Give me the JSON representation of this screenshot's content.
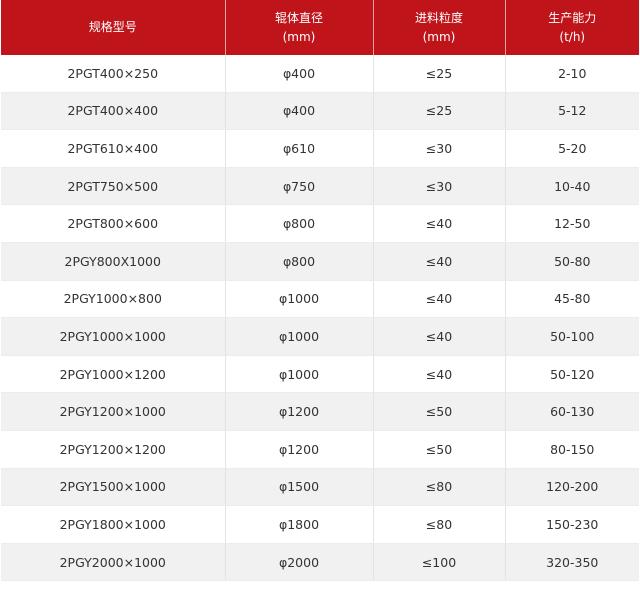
{
  "table": {
    "header": [
      {
        "title": "规格型号"
      },
      {
        "title": "辊体直径",
        "unit": "(mm)"
      },
      {
        "title": "进料粒度",
        "unit": "(mm)"
      },
      {
        "title": "生产能力",
        "unit": "(t/h)"
      }
    ],
    "rows": [
      [
        "2PGT400×250",
        "φ400",
        "≤25",
        "2-10"
      ],
      [
        "2PGT400×400",
        "φ400",
        "≤25",
        "5-12"
      ],
      [
        "2PGT610×400",
        "φ610",
        "≤30",
        "5-20"
      ],
      [
        "2PGT750×500",
        "φ750",
        "≤30",
        "10-40"
      ],
      [
        "2PGT800×600",
        "φ800",
        "≤40",
        "12-50"
      ],
      [
        "2PGY800X1000",
        "φ800",
        "≤40",
        "50-80"
      ],
      [
        "2PGY1000×800",
        "φ1000",
        "≤40",
        "45-80"
      ],
      [
        "2PGY1000×1000",
        "φ1000",
        "≤40",
        "50-100"
      ],
      [
        "2PGY1000×1200",
        "φ1000",
        "≤40",
        "50-120"
      ],
      [
        "2PGY1200×1000",
        "φ1200",
        "≤50",
        "60-130"
      ],
      [
        "2PGY1200×1200",
        "φ1200",
        "≤50",
        "80-150"
      ],
      [
        "2PGY1500×1000",
        "φ1500",
        "≤80",
        "120-200"
      ],
      [
        "2PGY1800×1000",
        "φ1800",
        "≤80",
        "150-230"
      ],
      [
        "2PGY2000×1000",
        "φ2000",
        "≤100",
        "320-350"
      ]
    ]
  }
}
